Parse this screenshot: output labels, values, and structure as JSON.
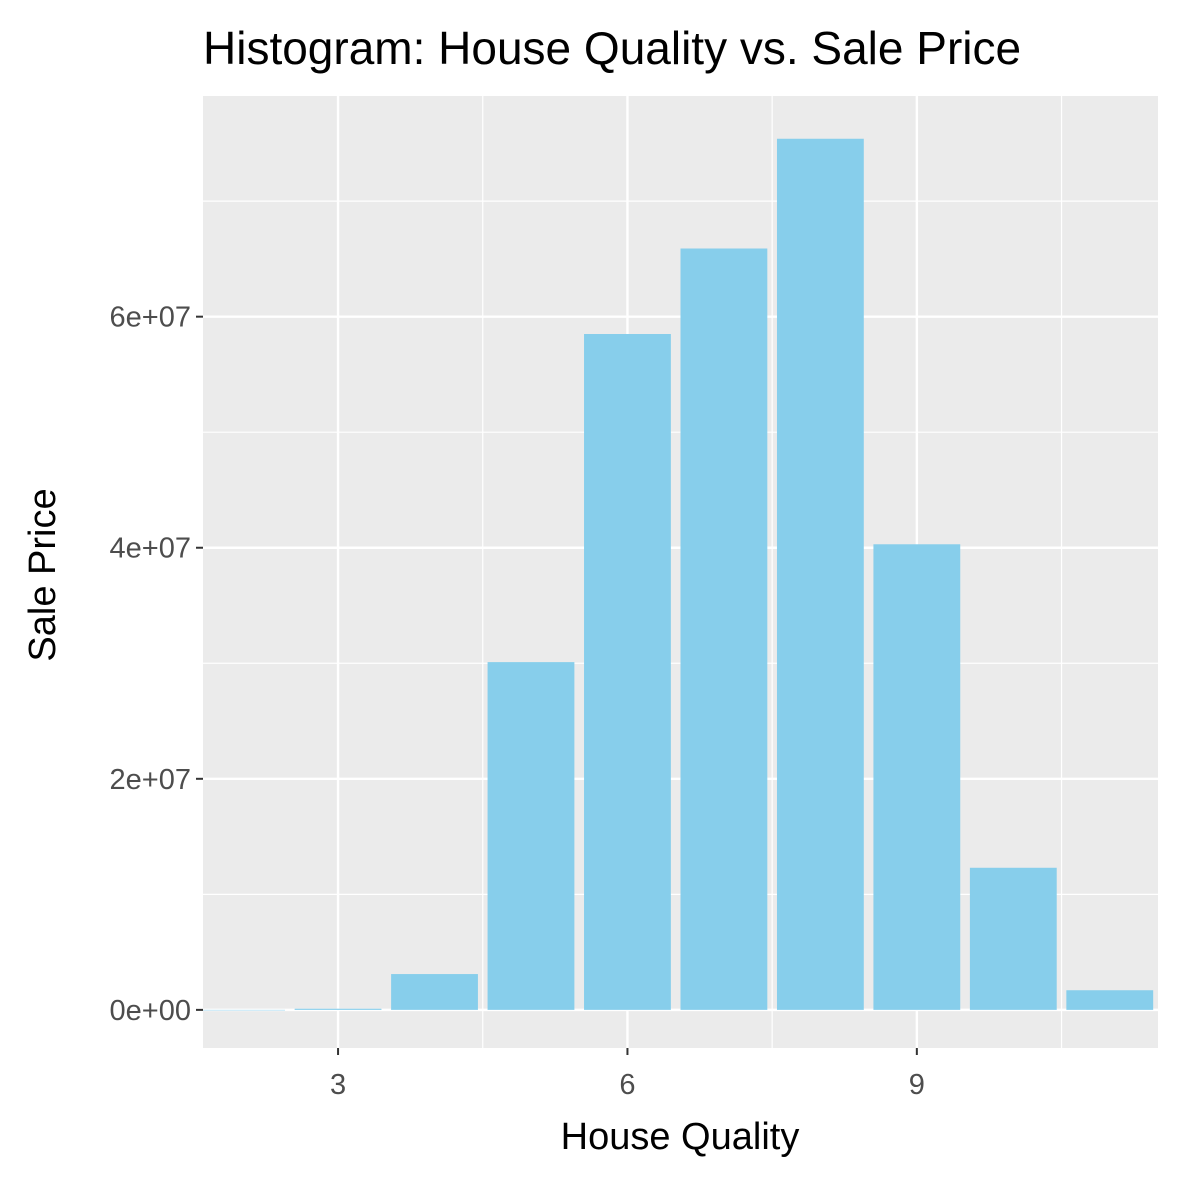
{
  "chart_data": {
    "type": "bar",
    "title": "Histogram: House Quality vs. Sale Price",
    "xlabel": "House Quality",
    "ylabel": "Sale Price",
    "x": [
      2,
      3,
      4,
      5,
      6,
      7,
      8,
      9,
      10,
      11
    ],
    "values": [
      0,
      100000,
      3100000,
      30100000,
      58500000,
      65900000,
      75400000,
      40300000,
      12300000,
      1700000
    ],
    "xlim": [
      1.6,
      11.5
    ],
    "ylim": [
      -3300000,
      79100000
    ],
    "x_ticks": [
      3,
      6,
      9
    ],
    "x_tick_labels": [
      "3",
      "6",
      "9"
    ],
    "y_ticks": [
      0,
      20000000,
      40000000,
      60000000
    ],
    "y_tick_labels": [
      "0e+00",
      "2e+07",
      "4e+07",
      "6e+07"
    ],
    "grid": true,
    "colors": {
      "bar": "#87CEEB",
      "panel": "#EBEBEB",
      "grid": "#FFFFFF",
      "tick_text": "#4D4D4D",
      "tick_mark": "#333333"
    }
  }
}
